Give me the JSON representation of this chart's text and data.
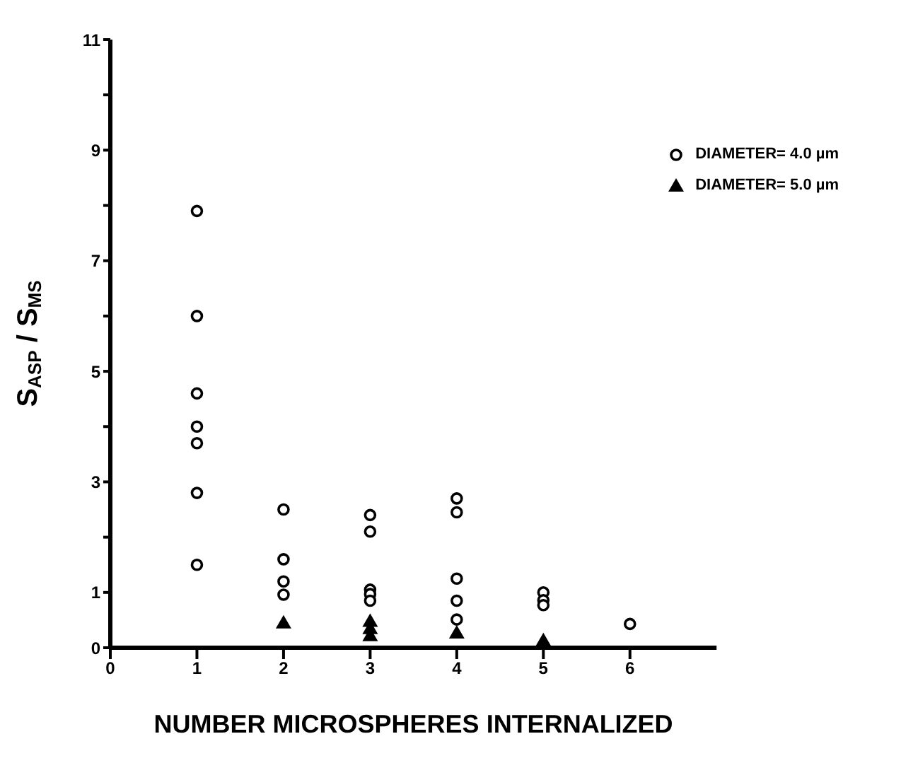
{
  "chart_data": {
    "type": "scatter",
    "xlabel": "NUMBER MICROSPHERES INTERNALIZED",
    "ylabel": "S$_{ASP}$ / S$_{MS}$",
    "xlim": [
      0,
      7
    ],
    "xticks": [
      0,
      1,
      2,
      3,
      4,
      5,
      6
    ],
    "ylim": [
      0,
      11
    ],
    "yticks": [
      0,
      1,
      {
        "value": 2,
        "label": null
      },
      3,
      {
        "value": 4,
        "label": null
      },
      5,
      {
        "value": 6,
        "label": null
      },
      7,
      {
        "value": 8,
        "label": null
      },
      9,
      {
        "value": 10,
        "label": null
      },
      11
    ],
    "grid": false,
    "legend": "top right",
    "series": [
      {
        "name": "DIAMETER= 4.0 µm",
        "color": "#000000",
        "marker": "circle",
        "x": [
          1,
          1,
          1,
          1,
          1,
          1,
          1,
          2,
          2,
          2,
          2,
          3,
          3,
          3,
          3,
          3,
          4,
          4,
          4,
          4,
          4,
          5,
          5,
          5,
          6
        ],
        "values": [
          7.9,
          6.0,
          4.6,
          4.0,
          3.7,
          2.8,
          1.5,
          2.5,
          1.6,
          1.2,
          0.96,
          2.4,
          2.1,
          1.05,
          0.97,
          0.85,
          2.7,
          2.45,
          1.25,
          0.85,
          0.51,
          1.0,
          0.86,
          0.77,
          0.43
        ]
      },
      {
        "name": "DIAMETER= 5.0 µm",
        "color": "#000000",
        "marker": "triangle",
        "x": [
          2,
          3,
          3,
          3,
          4,
          5
        ],
        "values": [
          0.45,
          0.48,
          0.35,
          0.22,
          0.27,
          0.13
        ]
      }
    ]
  }
}
